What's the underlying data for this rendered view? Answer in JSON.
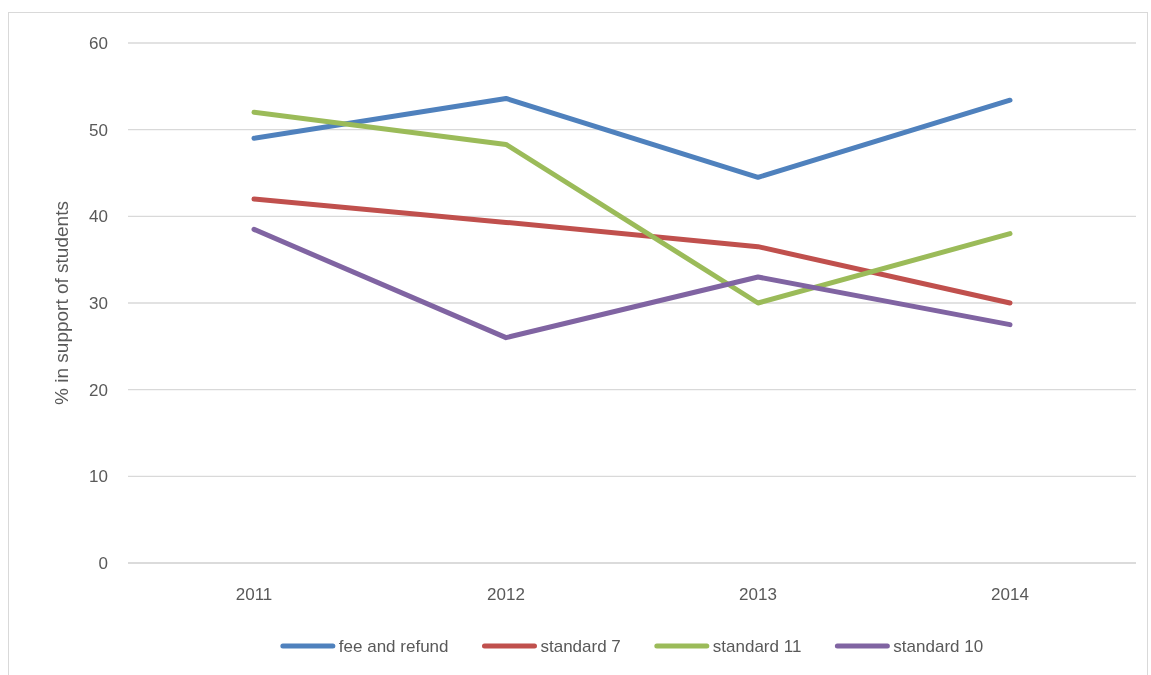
{
  "chart_data": {
    "type": "line",
    "ylabel": "% in support of students",
    "categories": [
      "2011",
      "2012",
      "2013",
      "2014"
    ],
    "series": [
      {
        "name": "fee and refund",
        "color": "#4f81bd",
        "values": [
          49,
          53.6,
          44.5,
          53.4
        ]
      },
      {
        "name": "standard 7",
        "color": "#c0504d",
        "values": [
          42,
          39.3,
          36.5,
          30
        ]
      },
      {
        "name": "standard 11",
        "color": "#9bbb59",
        "values": [
          52,
          48.3,
          30,
          38
        ]
      },
      {
        "name": "standard 10",
        "color": "#8064a2",
        "values": [
          38.5,
          26,
          33,
          27.5
        ]
      }
    ],
    "ylim": [
      0,
      60
    ],
    "yticks": [
      0,
      10,
      20,
      30,
      40,
      50,
      60
    ],
    "grid": "y",
    "legend": "bottom",
    "marker": "none",
    "line_style": "solid"
  }
}
